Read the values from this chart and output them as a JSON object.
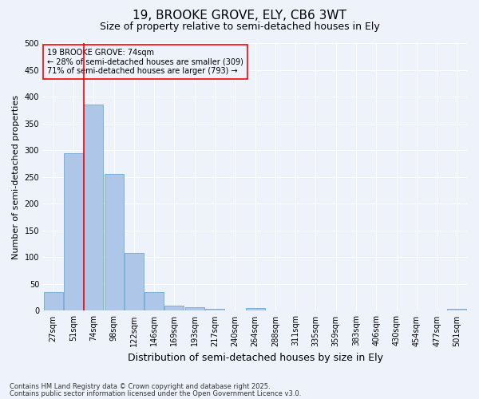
{
  "title": "19, BROOKE GROVE, ELY, CB6 3WT",
  "subtitle": "Size of property relative to semi-detached houses in Ely",
  "xlabel": "Distribution of semi-detached houses by size in Ely",
  "ylabel": "Number of semi-detached properties",
  "categories": [
    "27sqm",
    "51sqm",
    "74sqm",
    "98sqm",
    "122sqm",
    "146sqm",
    "169sqm",
    "193sqm",
    "217sqm",
    "240sqm",
    "264sqm",
    "288sqm",
    "311sqm",
    "335sqm",
    "359sqm",
    "383sqm",
    "406sqm",
    "430sqm",
    "454sqm",
    "477sqm",
    "501sqm"
  ],
  "values": [
    35,
    295,
    385,
    255,
    108,
    35,
    10,
    6,
    4,
    0,
    5,
    0,
    0,
    0,
    0,
    0,
    0,
    0,
    0,
    0,
    4
  ],
  "bar_color": "#aec6e8",
  "bar_edge_color": "#5a9fd4",
  "vline_x": 1.5,
  "vline_color": "red",
  "annotation_box_text": "19 BROOKE GROVE: 74sqm\n← 28% of semi-detached houses are smaller (309)\n71% of semi-detached houses are larger (793) →",
  "box_edge_color": "red",
  "ylim": [
    0,
    500
  ],
  "yticks": [
    0,
    50,
    100,
    150,
    200,
    250,
    300,
    350,
    400,
    450,
    500
  ],
  "footer_line1": "Contains HM Land Registry data © Crown copyright and database right 2025.",
  "footer_line2": "Contains public sector information licensed under the Open Government Licence v3.0.",
  "background_color": "#eef2fb",
  "grid_color": "white",
  "title_fontsize": 11,
  "subtitle_fontsize": 9,
  "tick_fontsize": 7,
  "ylabel_fontsize": 8,
  "xlabel_fontsize": 9,
  "annotation_fontsize": 7,
  "footer_fontsize": 6
}
